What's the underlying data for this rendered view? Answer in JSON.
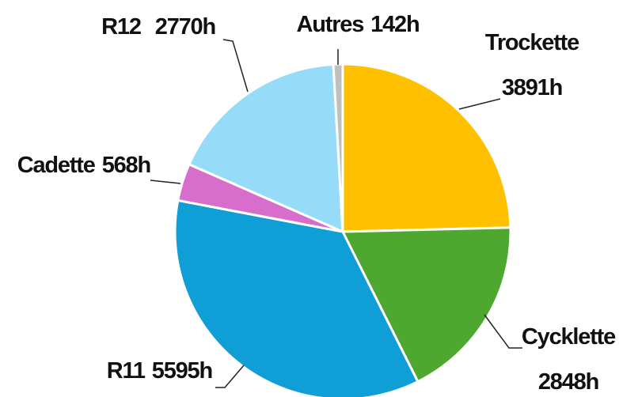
{
  "chart_data": {
    "type": "pie",
    "categories": [
      "Trockette",
      "Cycklette",
      "R11",
      "Cadette",
      "R12",
      "Autres"
    ],
    "values": [
      3891,
      2848,
      5595,
      568,
      2770,
      142
    ],
    "value_labels": [
      "3891h",
      "2848h",
      "5595h",
      "568h",
      "2770h",
      "142h"
    ],
    "colors": [
      "#FFC000",
      "#4EA72E",
      "#0F9ED5",
      "#D86ECC",
      "#96DCF8",
      "#BFBFBF"
    ]
  }
}
